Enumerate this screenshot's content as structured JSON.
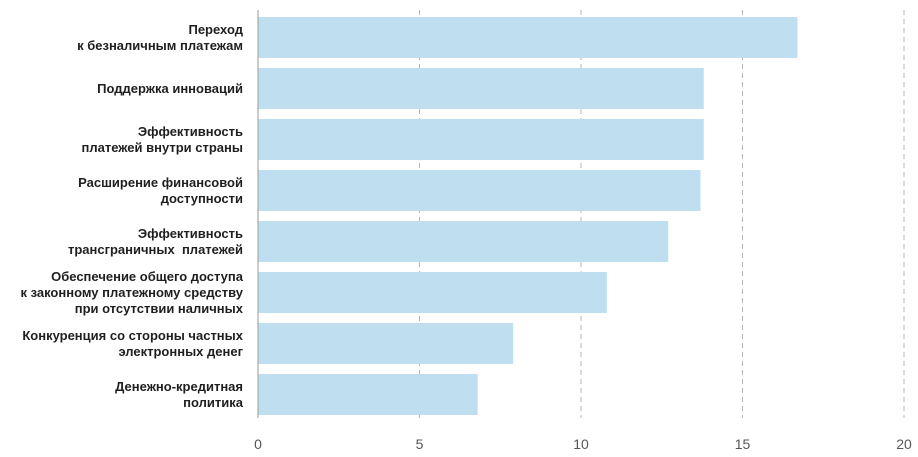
{
  "chart_data": {
    "type": "bar",
    "orientation": "horizontal",
    "categories": [
      [
        "Переход",
        "к безналичным платежам"
      ],
      [
        "Поддержка инноваций"
      ],
      [
        "Эффективность",
        "платежей внутри страны"
      ],
      [
        "Расширение финансовой",
        "доступности"
      ],
      [
        "Эффективность",
        "трансграничных  платежей"
      ],
      [
        "Обеспечение общего доступа",
        "к законному платежному средству",
        "при отсутствии наличных"
      ],
      [
        "Конкуренция со стороны частных",
        "электронных денег"
      ],
      [
        "Денежно-кредитная",
        "политика"
      ]
    ],
    "values": [
      16.7,
      13.8,
      13.8,
      13.7,
      12.7,
      10.8,
      7.9,
      6.8
    ],
    "xlim": [
      0,
      20
    ],
    "xticks": [
      "0",
      "5",
      "10",
      "15",
      "20"
    ],
    "grid": "vertical-dashed",
    "bar_color": "#bfdff0",
    "title": "",
    "xlabel": "",
    "ylabel": ""
  }
}
